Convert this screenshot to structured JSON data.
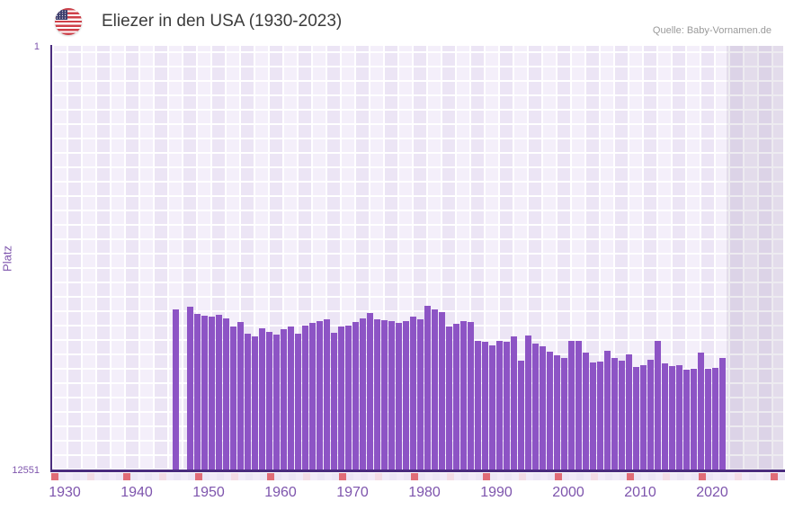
{
  "header": {
    "flag_icon": "us-flag-icon",
    "title": "Eliezer in den USA (1930-2023)",
    "source": "Quelle: Baby-Vornamen.de"
  },
  "colors": {
    "bar": "#8d54c5",
    "axis": "#4b2c7f",
    "tick_label": "#7e55ad",
    "title_text": "#3c3c3c",
    "source_text": "#9a9a9a",
    "plot_bg_light": "#f4effa",
    "plot_bg_dark": "#ece5f5",
    "strip_decade_red": "#e06c77",
    "strip_half_decade_pink": "#f3dce5",
    "strip_default": "#f1ebf8"
  },
  "chart_data": {
    "type": "bar",
    "title": "Eliezer in den USA (1930-2023)",
    "source": "Quelle: Baby-Vornamen.de",
    "xlabel": "",
    "ylabel": "Platz",
    "y_axis": {
      "top_label": "1",
      "bottom_label": "12551",
      "min": 1,
      "max": 12551,
      "inverted": true,
      "scale": "linear"
    },
    "x_ticks": [
      1930,
      1940,
      1950,
      1960,
      1970,
      1980,
      1990,
      2000,
      2010,
      2020
    ],
    "x_range": [
      1928,
      2030
    ],
    "grid": true,
    "legend": false,
    "missing_years": [
      1946
    ],
    "no_data_shaded_from_year": 2022,
    "series": [
      {
        "name": "Platz",
        "points": [
          {
            "year": 1945,
            "rank": 7800
          },
          {
            "year": 1947,
            "rank": 7720
          },
          {
            "year": 1948,
            "rank": 7920
          },
          {
            "year": 1949,
            "rank": 7990
          },
          {
            "year": 1950,
            "rank": 8000
          },
          {
            "year": 1951,
            "rank": 7950
          },
          {
            "year": 1952,
            "rank": 8050
          },
          {
            "year": 1953,
            "rank": 8290
          },
          {
            "year": 1954,
            "rank": 8160
          },
          {
            "year": 1955,
            "rank": 8510
          },
          {
            "year": 1956,
            "rank": 8600
          },
          {
            "year": 1957,
            "rank": 8340
          },
          {
            "year": 1958,
            "rank": 8450
          },
          {
            "year": 1959,
            "rank": 8530
          },
          {
            "year": 1960,
            "rank": 8380
          },
          {
            "year": 1961,
            "rank": 8310
          },
          {
            "year": 1962,
            "rank": 8510
          },
          {
            "year": 1963,
            "rank": 8270
          },
          {
            "year": 1964,
            "rank": 8200
          },
          {
            "year": 1965,
            "rank": 8130
          },
          {
            "year": 1966,
            "rank": 8080
          },
          {
            "year": 1967,
            "rank": 8490
          },
          {
            "year": 1968,
            "rank": 8300
          },
          {
            "year": 1969,
            "rank": 8280
          },
          {
            "year": 1970,
            "rank": 8170
          },
          {
            "year": 1971,
            "rank": 8070
          },
          {
            "year": 1972,
            "rank": 7910
          },
          {
            "year": 1973,
            "rank": 8090
          },
          {
            "year": 1974,
            "rank": 8120
          },
          {
            "year": 1975,
            "rank": 8150
          },
          {
            "year": 1976,
            "rank": 8180
          },
          {
            "year": 1977,
            "rank": 8150
          },
          {
            "year": 1978,
            "rank": 8010
          },
          {
            "year": 1979,
            "rank": 8090
          },
          {
            "year": 1980,
            "rank": 7690
          },
          {
            "year": 1981,
            "rank": 7800
          },
          {
            "year": 1982,
            "rank": 7870
          },
          {
            "year": 1983,
            "rank": 8290
          },
          {
            "year": 1984,
            "rank": 8230
          },
          {
            "year": 1985,
            "rank": 8150
          },
          {
            "year": 1986,
            "rank": 8170
          },
          {
            "year": 1987,
            "rank": 8730
          },
          {
            "year": 1988,
            "rank": 8760
          },
          {
            "year": 1989,
            "rank": 8860
          },
          {
            "year": 1990,
            "rank": 8720
          },
          {
            "year": 1991,
            "rank": 8740
          },
          {
            "year": 1992,
            "rank": 8590
          },
          {
            "year": 1993,
            "rank": 9320
          },
          {
            "year": 1994,
            "rank": 8550
          },
          {
            "year": 1995,
            "rank": 8810
          },
          {
            "year": 1996,
            "rank": 8890
          },
          {
            "year": 1997,
            "rank": 9050
          },
          {
            "year": 1998,
            "rank": 9160
          },
          {
            "year": 1999,
            "rank": 9220
          },
          {
            "year": 2000,
            "rank": 8710
          },
          {
            "year": 2001,
            "rank": 8730
          },
          {
            "year": 2002,
            "rank": 9060
          },
          {
            "year": 2003,
            "rank": 9350
          },
          {
            "year": 2004,
            "rank": 9340
          },
          {
            "year": 2005,
            "rank": 9020
          },
          {
            "year": 2006,
            "rank": 9230
          },
          {
            "year": 2007,
            "rank": 9310
          },
          {
            "year": 2008,
            "rank": 9130
          },
          {
            "year": 2009,
            "rank": 9500
          },
          {
            "year": 2010,
            "rank": 9450
          },
          {
            "year": 2011,
            "rank": 9290
          },
          {
            "year": 2012,
            "rank": 8730
          },
          {
            "year": 2013,
            "rank": 9390
          },
          {
            "year": 2014,
            "rank": 9460
          },
          {
            "year": 2015,
            "rank": 9450
          },
          {
            "year": 2016,
            "rank": 9580
          },
          {
            "year": 2017,
            "rank": 9550
          },
          {
            "year": 2018,
            "rank": 9080
          },
          {
            "year": 2019,
            "rank": 9550
          },
          {
            "year": 2020,
            "rank": 9510
          },
          {
            "year": 2021,
            "rank": 9220
          }
        ]
      }
    ]
  }
}
